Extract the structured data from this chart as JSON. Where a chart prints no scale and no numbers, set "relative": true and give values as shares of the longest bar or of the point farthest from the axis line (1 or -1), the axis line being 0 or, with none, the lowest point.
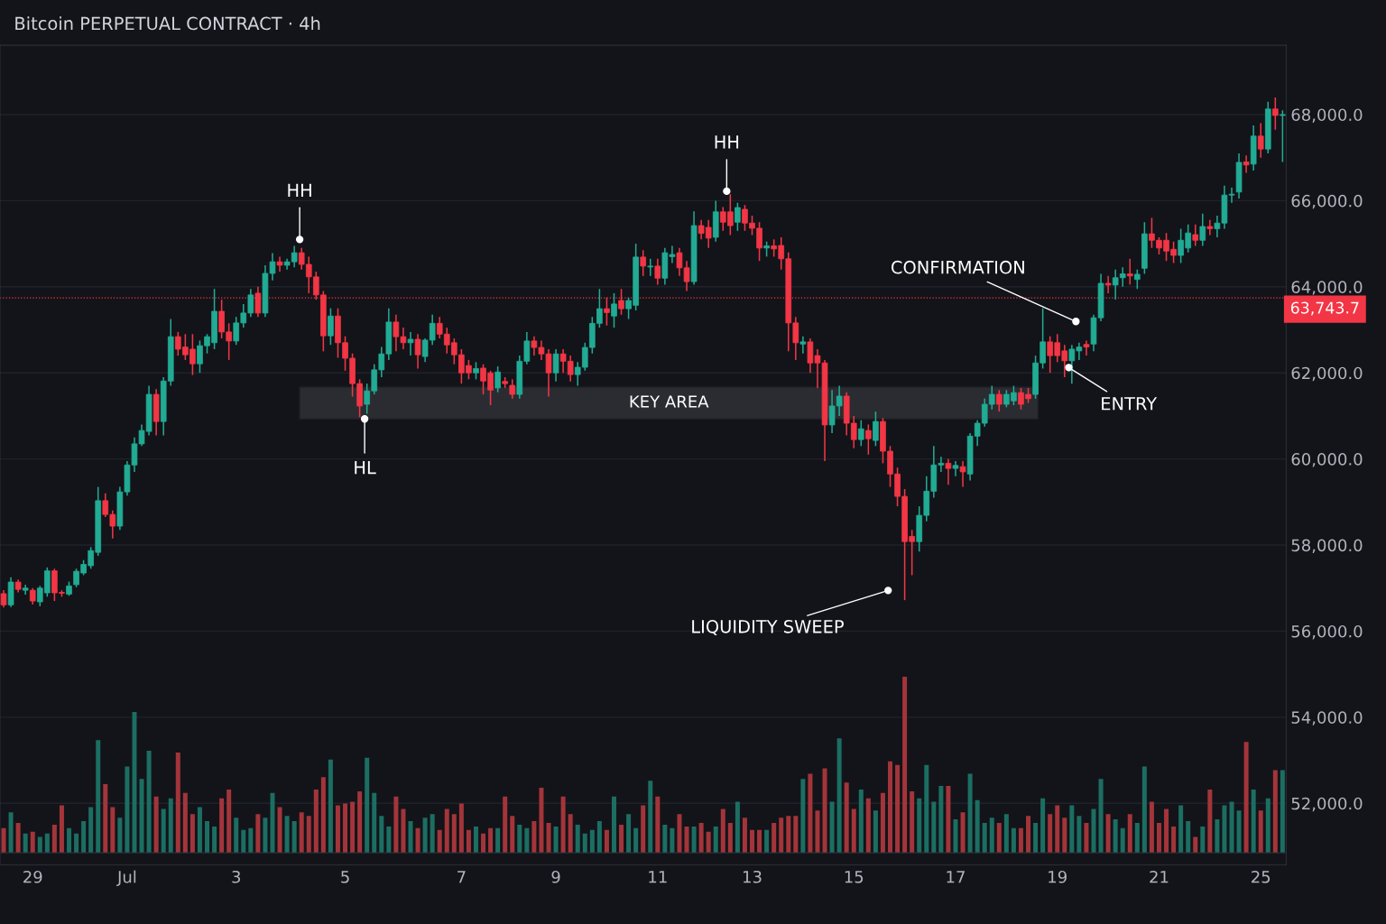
{
  "chart_data": [
    {
      "type": "candlestick",
      "title": "Bitcoin PERPETUAL CONTRACT · 4h",
      "tick_labels": "y",
      "categories": [
        null,
        null,
        null,
        null,
        null,
        null,
        null,
        null,
        null,
        null,
        null,
        null,
        null,
        null,
        null,
        null,
        null,
        null,
        null,
        null,
        null,
        null,
        null,
        null,
        null,
        null,
        null,
        null,
        null,
        null,
        null,
        null,
        null,
        null,
        null,
        null,
        null,
        null,
        null,
        null,
        null,
        null,
        null,
        null,
        null,
        null,
        null,
        null,
        null,
        null,
        null,
        null,
        null,
        null,
        null,
        null,
        null,
        null,
        null,
        null,
        null,
        null,
        null,
        null,
        null,
        null,
        null,
        null,
        null,
        null,
        null,
        null,
        null,
        null,
        null,
        null,
        null,
        null,
        null,
        null,
        null,
        null,
        null,
        null,
        null,
        null,
        null,
        null,
        null,
        null,
        null,
        null,
        null,
        null,
        null,
        null,
        null,
        null,
        null,
        null,
        null,
        null,
        null,
        null,
        null,
        null,
        null,
        null,
        null,
        null,
        null,
        null,
        null,
        null,
        null,
        null,
        null,
        null,
        null,
        null,
        null,
        null,
        null,
        null,
        null,
        null,
        null,
        null,
        null,
        null,
        null,
        null,
        null,
        null,
        null,
        null,
        null,
        null,
        null,
        null,
        null,
        null,
        null,
        null,
        null,
        null,
        null,
        null,
        null,
        null,
        null,
        null,
        null,
        null,
        null,
        null,
        null,
        null,
        null,
        null,
        null,
        null,
        null,
        null,
        null,
        null,
        null,
        null,
        null,
        null,
        null,
        null,
        null,
        null,
        null,
        null,
        null
      ],
      "ohlc": [
        [
          56870,
          56950,
          56550,
          56610
        ],
        [
          56610,
          57250,
          56560,
          57140
        ],
        [
          57140,
          57200,
          56900,
          56970
        ],
        [
          56950,
          57080,
          56850,
          57000
        ],
        [
          56950,
          57000,
          56620,
          56700
        ],
        [
          56680,
          57050,
          56580,
          57000
        ],
        [
          56890,
          57480,
          56800,
          57400
        ],
        [
          57400,
          57450,
          56700,
          56890
        ],
        [
          56900,
          56950,
          56800,
          56880
        ],
        [
          56860,
          57150,
          56820,
          57050
        ],
        [
          57080,
          57450,
          57020,
          57390
        ],
        [
          57350,
          57650,
          57300,
          57550
        ],
        [
          57520,
          57950,
          57450,
          57870
        ],
        [
          57830,
          59350,
          57750,
          59030
        ],
        [
          59030,
          59200,
          58650,
          58710
        ],
        [
          58710,
          58800,
          58150,
          58440
        ],
        [
          58440,
          59350,
          58350,
          59235
        ],
        [
          59235,
          59950,
          59150,
          59860
        ],
        [
          59860,
          60500,
          59700,
          60350
        ],
        [
          60350,
          60800,
          60300,
          60660
        ],
        [
          60640,
          61700,
          60550,
          61500
        ],
        [
          61500,
          61620,
          60550,
          60870
        ],
        [
          60870,
          61900,
          60550,
          61810
        ],
        [
          61810,
          63250,
          61700,
          62840
        ],
        [
          62840,
          62950,
          62400,
          62550
        ],
        [
          62600,
          62900,
          62300,
          62420
        ],
        [
          62550,
          62900,
          61950,
          62210
        ],
        [
          62210,
          62750,
          62000,
          62630
        ],
        [
          62630,
          62900,
          62450,
          62840
        ],
        [
          62700,
          63950,
          62550,
          63430
        ],
        [
          63430,
          63700,
          62800,
          62950
        ],
        [
          62950,
          63150,
          62300,
          62740
        ],
        [
          62740,
          63300,
          62650,
          63160
        ],
        [
          63160,
          63600,
          63050,
          63390
        ],
        [
          63390,
          63950,
          63300,
          63810
        ],
        [
          63850,
          64000,
          63300,
          63390
        ],
        [
          63390,
          64500,
          63300,
          64310
        ],
        [
          64310,
          64780,
          64150,
          64580
        ],
        [
          64580,
          64700,
          64350,
          64500
        ],
        [
          64500,
          64650,
          64400,
          64580
        ],
        [
          64580,
          64950,
          64450,
          64790
        ],
        [
          64790,
          64900,
          64400,
          64520
        ],
        [
          64520,
          64700,
          63850,
          64230
        ],
        [
          64230,
          64350,
          63700,
          63810
        ],
        [
          63810,
          63900,
          62500,
          62860
        ],
        [
          62860,
          63500,
          62650,
          63320
        ],
        [
          63320,
          63500,
          62350,
          62700
        ],
        [
          62700,
          62850,
          62050,
          62340
        ],
        [
          62340,
          62450,
          61450,
          61750
        ],
        [
          61750,
          61850,
          60970,
          61230
        ],
        [
          61270,
          61750,
          61050,
          61580
        ],
        [
          61580,
          62200,
          61500,
          62070
        ],
        [
          62070,
          62600,
          61900,
          62440
        ],
        [
          62440,
          63500,
          62300,
          63180
        ],
        [
          63180,
          63350,
          62500,
          62840
        ],
        [
          62840,
          63050,
          62550,
          62700
        ],
        [
          62700,
          62950,
          62400,
          62780
        ],
        [
          62780,
          62900,
          62100,
          62420
        ],
        [
          62380,
          62800,
          62250,
          62760
        ],
        [
          62760,
          63350,
          62650,
          63150
        ],
        [
          63150,
          63300,
          62800,
          62900
        ],
        [
          62900,
          63050,
          62450,
          62650
        ],
        [
          62700,
          62800,
          62200,
          62420
        ],
        [
          62420,
          62550,
          61750,
          62000
        ],
        [
          62170,
          62300,
          61850,
          62000
        ],
        [
          62000,
          62250,
          61850,
          62100
        ],
        [
          62110,
          62200,
          61500,
          61810
        ],
        [
          62000,
          62050,
          61250,
          61600
        ],
        [
          61650,
          62150,
          61550,
          62020
        ],
        [
          61800,
          61900,
          61650,
          61750
        ],
        [
          61710,
          61850,
          61400,
          61500
        ],
        [
          61500,
          62400,
          61400,
          62270
        ],
        [
          62270,
          62950,
          62200,
          62740
        ],
        [
          62740,
          62850,
          62400,
          62590
        ],
        [
          62590,
          62750,
          62300,
          62440
        ],
        [
          62440,
          62550,
          61450,
          62000
        ],
        [
          62000,
          62550,
          61800,
          62440
        ],
        [
          62440,
          62550,
          62000,
          62270
        ],
        [
          62270,
          62400,
          61800,
          61960
        ],
        [
          61960,
          62250,
          61700,
          62130
        ],
        [
          62130,
          62700,
          62050,
          62590
        ],
        [
          62590,
          63300,
          62450,
          63150
        ],
        [
          63150,
          63950,
          63050,
          63490
        ],
        [
          63490,
          63750,
          63100,
          63400
        ],
        [
          63320,
          63850,
          63050,
          63600
        ],
        [
          63680,
          63950,
          63350,
          63490
        ],
        [
          63490,
          63750,
          63250,
          63680
        ],
        [
          63570,
          65000,
          63450,
          64690
        ],
        [
          64690,
          64850,
          64250,
          64480
        ],
        [
          64460,
          64650,
          64250,
          64480
        ],
        [
          64480,
          64650,
          64050,
          64200
        ],
        [
          64200,
          64900,
          64050,
          64790
        ],
        [
          64700,
          64950,
          64550,
          64750
        ],
        [
          64790,
          64900,
          64250,
          64440
        ],
        [
          64440,
          64600,
          63900,
          64120
        ],
        [
          64120,
          65750,
          64050,
          65420
        ],
        [
          65420,
          65550,
          65100,
          65240
        ],
        [
          65380,
          65550,
          64900,
          65130
        ],
        [
          65150,
          66000,
          65050,
          65740
        ],
        [
          65740,
          65850,
          65300,
          65500
        ],
        [
          65740,
          66150,
          65200,
          65420
        ],
        [
          65500,
          65950,
          65300,
          65840
        ],
        [
          65800,
          65900,
          65300,
          65480
        ],
        [
          65480,
          65650,
          65200,
          65360
        ],
        [
          65360,
          65500,
          64600,
          64900
        ],
        [
          64900,
          65050,
          64700,
          64950
        ],
        [
          64950,
          65100,
          64700,
          64880
        ],
        [
          64960,
          65150,
          64400,
          64650
        ],
        [
          64650,
          64800,
          62500,
          63160
        ],
        [
          63160,
          63300,
          62300,
          62700
        ],
        [
          62670,
          62850,
          62450,
          62720
        ],
        [
          62720,
          62800,
          62000,
          62230
        ],
        [
          62400,
          62550,
          61650,
          62230
        ],
        [
          62230,
          62300,
          59950,
          60790
        ],
        [
          60790,
          61600,
          60600,
          61230
        ],
        [
          61230,
          61700,
          61000,
          61460
        ],
        [
          61460,
          61550,
          60550,
          60830
        ],
        [
          60830,
          61000,
          60250,
          60450
        ],
        [
          60450,
          60900,
          60300,
          60700
        ],
        [
          60660,
          60800,
          60100,
          60470
        ],
        [
          60430,
          61100,
          60300,
          60870
        ],
        [
          60870,
          60950,
          59900,
          60180
        ],
        [
          60180,
          60300,
          59350,
          59650
        ],
        [
          59650,
          59800,
          58900,
          59130
        ],
        [
          59130,
          59300,
          56720,
          58080
        ],
        [
          58200,
          58350,
          57300,
          58080
        ],
        [
          58080,
          58900,
          57850,
          58690
        ],
        [
          58690,
          59600,
          58550,
          59250
        ],
        [
          59250,
          60300,
          59100,
          59860
        ],
        [
          59860,
          60050,
          59700,
          59900
        ],
        [
          59900,
          60000,
          59400,
          59780
        ],
        [
          59780,
          59950,
          59600,
          59850
        ],
        [
          59820,
          59950,
          59350,
          59700
        ],
        [
          59650,
          60600,
          59500,
          60530
        ],
        [
          60530,
          60900,
          60300,
          60830
        ],
        [
          60830,
          61400,
          60750,
          61270
        ],
        [
          61270,
          61700,
          61150,
          61500
        ],
        [
          61500,
          61600,
          61100,
          61270
        ],
        [
          61270,
          61600,
          61200,
          61500
        ],
        [
          61350,
          61700,
          61250,
          61540
        ],
        [
          61540,
          61650,
          61150,
          61270
        ],
        [
          61500,
          61650,
          61300,
          61400
        ],
        [
          61500,
          62400,
          61400,
          62230
        ],
        [
          62230,
          63500,
          62100,
          62720
        ],
        [
          62720,
          62850,
          62000,
          62400
        ],
        [
          62700,
          62900,
          62250,
          62400
        ],
        [
          62510,
          62650,
          61900,
          62280
        ],
        [
          62280,
          62650,
          61750,
          62550
        ],
        [
          62510,
          62700,
          62300,
          62600
        ],
        [
          62660,
          62750,
          62400,
          62600
        ],
        [
          62670,
          63350,
          62500,
          63280
        ],
        [
          63280,
          64300,
          63200,
          64080
        ],
        [
          64080,
          64250,
          63850,
          64040
        ],
        [
          64040,
          64400,
          63700,
          64210
        ],
        [
          64210,
          64450,
          64000,
          64300
        ],
        [
          64300,
          64650,
          64050,
          64250
        ],
        [
          64170,
          64400,
          63950,
          64290
        ],
        [
          64430,
          65500,
          64300,
          65230
        ],
        [
          65230,
          65600,
          64900,
          65080
        ],
        [
          65080,
          65150,
          64750,
          64900
        ],
        [
          65080,
          65250,
          64600,
          64830
        ],
        [
          64870,
          65050,
          64550,
          64730
        ],
        [
          64730,
          65350,
          64550,
          65080
        ],
        [
          64900,
          65450,
          64800,
          65250
        ],
        [
          65210,
          65450,
          64950,
          65080
        ],
        [
          65080,
          65700,
          64950,
          65400
        ],
        [
          65400,
          65550,
          65200,
          65350
        ],
        [
          65350,
          65650,
          65150,
          65480
        ],
        [
          65480,
          66350,
          65350,
          66130
        ],
        [
          66130,
          66300,
          65950,
          66150
        ],
        [
          66200,
          67100,
          66050,
          66890
        ],
        [
          66900,
          67050,
          66650,
          66830
        ],
        [
          66850,
          67750,
          66700,
          67500
        ],
        [
          67500,
          67800,
          67000,
          67200
        ],
        [
          67200,
          68300,
          67100,
          68130
        ],
        [
          68130,
          68400,
          67650,
          67980
        ],
        [
          67980,
          68100,
          66900,
          68000
        ]
      ],
      "colors": [
        "#f23645",
        "#22ab94",
        "#f23645",
        "#22ab94",
        "#f23645",
        "#22ab94",
        "#22ab94",
        "#f23645",
        "#f23645",
        "#22ab94",
        "#22ab94",
        "#22ab94",
        "#22ab94",
        "#22ab94",
        "#f23645",
        "#f23645",
        "#22ab94",
        "#22ab94",
        "#22ab94",
        "#22ab94",
        "#22ab94",
        "#f23645",
        "#22ab94",
        "#22ab94",
        "#f23645",
        "#f23645",
        "#f23645",
        "#22ab94",
        "#22ab94",
        "#22ab94",
        "#f23645",
        "#f23645",
        "#22ab94",
        "#22ab94",
        "#22ab94",
        "#f23645",
        "#22ab94",
        "#22ab94",
        "#f23645",
        "#22ab94",
        "#22ab94",
        "#f23645",
        "#f23645",
        "#f23645",
        "#f23645",
        "#22ab94",
        "#f23645",
        "#f23645",
        "#f23645",
        "#f23645",
        "#22ab94",
        "#22ab94",
        "#22ab94",
        "#22ab94",
        "#f23645",
        "#f23645",
        "#22ab94",
        "#f23645",
        "#22ab94",
        "#22ab94",
        "#f23645",
        "#f23645",
        "#f23645",
        "#f23645",
        "#f23645",
        "#22ab94",
        "#f23645",
        "#f23645",
        "#22ab94",
        "#f23645",
        "#f23645",
        "#22ab94",
        "#22ab94",
        "#f23645",
        "#f23645",
        "#f23645",
        "#22ab94",
        "#f23645",
        "#f23645",
        "#22ab94",
        "#22ab94",
        "#22ab94",
        "#22ab94",
        "#f23645",
        "#22ab94",
        "#f23645",
        "#22ab94",
        "#22ab94",
        "#f23645",
        "#22ab94",
        "#f23645",
        "#22ab94",
        "#22ab94",
        "#f23645",
        "#f23645",
        "#22ab94",
        "#f23645",
        "#f23645",
        "#22ab94",
        "#f23645",
        "#f23645",
        "#22ab94",
        "#f23645",
        "#f23645",
        "#f23645",
        "#22ab94",
        "#f23645",
        "#f23645",
        "#f23645",
        "#f23645",
        "#22ab94",
        "#f23645",
        "#f23645",
        "#f23645",
        "#22ab94",
        "#22ab94",
        "#f23645",
        "#f23645",
        "#22ab94",
        "#f23645",
        "#22ab94",
        "#f23645",
        "#f23645",
        "#f23645",
        "#f23645",
        "#f23645",
        "#22ab94",
        "#22ab94",
        "#22ab94",
        "#22ab94",
        "#f23645",
        "#22ab94",
        "#f23645",
        "#22ab94",
        "#22ab94",
        "#22ab94",
        "#22ab94",
        "#f23645",
        "#22ab94",
        "#22ab94",
        "#f23645",
        "#f23645",
        "#22ab94",
        "#22ab94",
        "#f23645",
        "#f23645",
        "#f23645",
        "#22ab94",
        "#22ab94",
        "#f23645",
        "#22ab94",
        "#22ab94",
        "#f23645",
        "#22ab94",
        "#22ab94",
        "#f23645",
        "#22ab94",
        "#22ab94",
        "#f23645",
        "#f23645",
        "#f23645",
        "#f23645",
        "#22ab94",
        "#22ab94",
        "#f23645",
        "#22ab94",
        "#f23645",
        "#22ab94",
        "#22ab94",
        "#22ab94",
        "#22ab94",
        "#f23645",
        "#22ab94",
        "#f23645",
        "#22ab94",
        "#f23645",
        "#22ab94"
      ],
      "ylim": [
        50570,
        69610
      ],
      "yticks": [
        {
          "value": 52000,
          "label": "52,000.0"
        },
        {
          "value": 54000,
          "label": "54,000.0"
        },
        {
          "value": 56000,
          "label": "56,000.0"
        },
        {
          "value": 58000,
          "label": "58,000.0"
        },
        {
          "value": 60000,
          "label": "60,000.0"
        },
        {
          "value": 62000,
          "label": "62,000.0"
        },
        {
          "value": 64000,
          "label": "64,000.0"
        },
        {
          "value": 66000,
          "label": "66,000.0"
        },
        {
          "value": 68000,
          "label": "68,000.0"
        }
      ],
      "grid": "y",
      "ref_lines": [
        {
          "axis": "y",
          "value": 63743.7,
          "label": "63,743.7",
          "color": "#f23645",
          "line_style": "dotted"
        }
      ],
      "bands": [
        {
          "axis": "y",
          "from": 60930,
          "to": 61670,
          "label": "KEY AREA",
          "color": "#ffffff"
        }
      ],
      "annotations": [
        {
          "text": "HH",
          "y": 65100
        },
        {
          "text": "HL",
          "y": 60930
        },
        {
          "text": "HH",
          "y": 66220
        },
        "LIQUIDITY SWEEP",
        "CONFIRMATION",
        "ENTRY"
      ]
    },
    {
      "type": "bar",
      "relative": true,
      "categories": [
        null,
        null,
        null,
        null,
        "29",
        null,
        null,
        null,
        null,
        null,
        null,
        null,
        null,
        null,
        null,
        null,
        null,
        "Jul",
        null,
        null,
        null,
        null,
        null,
        null,
        null,
        null,
        null,
        null,
        null,
        null,
        null,
        null,
        "3",
        null,
        null,
        null,
        null,
        null,
        null,
        null,
        null,
        null,
        null,
        null,
        null,
        null,
        null,
        "5",
        null,
        null,
        null,
        null,
        null,
        null,
        null,
        null,
        null,
        null,
        null,
        null,
        null,
        null,
        null,
        "7",
        null,
        null,
        null,
        null,
        null,
        null,
        null,
        null,
        null,
        null,
        null,
        null,
        "9",
        null,
        null,
        null,
        null,
        null,
        null,
        null,
        null,
        null,
        null,
        null,
        null,
        null,
        "11",
        null,
        null,
        null,
        null,
        null,
        null,
        null,
        null,
        null,
        null,
        null,
        null,
        "13",
        null,
        null,
        null,
        null,
        null,
        null,
        null,
        null,
        null,
        null,
        null,
        null,
        null,
        "15",
        null,
        null,
        null,
        null,
        null,
        null,
        null,
        null,
        null,
        null,
        null,
        null,
        null,
        "17",
        null,
        null,
        null,
        null,
        null,
        null,
        null,
        null,
        null,
        null,
        null,
        null,
        null,
        "19",
        null,
        null,
        null,
        null,
        null,
        null,
        null,
        null,
        null,
        null,
        null,
        null,
        null,
        "21",
        null,
        null,
        null,
        null,
        null,
        null,
        null,
        null,
        null,
        null,
        null,
        null,
        null,
        "25",
        null,
        null,
        null
      ],
      "values": [
        0.14,
        0.23,
        0.17,
        0.11,
        0.12,
        0.09,
        0.11,
        0.16,
        0.27,
        0.14,
        0.11,
        0.18,
        0.26,
        0.64,
        0.39,
        0.26,
        0.2,
        0.49,
        0.8,
        0.42,
        0.58,
        0.32,
        0.25,
        0.31,
        0.57,
        0.34,
        0.22,
        0.26,
        0.18,
        0.15,
        0.31,
        0.36,
        0.2,
        0.13,
        0.14,
        0.22,
        0.2,
        0.34,
        0.26,
        0.21,
        0.18,
        0.23,
        0.21,
        0.36,
        0.43,
        0.53,
        0.27,
        0.28,
        0.29,
        0.35,
        0.54,
        0.34,
        0.21,
        0.15,
        0.32,
        0.25,
        0.18,
        0.14,
        0.2,
        0.22,
        0.13,
        0.25,
        0.22,
        0.28,
        0.13,
        0.15,
        0.11,
        0.14,
        0.14,
        0.32,
        0.21,
        0.16,
        0.14,
        0.18,
        0.37,
        0.17,
        0.15,
        0.32,
        0.22,
        0.16,
        0.11,
        0.13,
        0.18,
        0.13,
        0.32,
        0.16,
        0.22,
        0.14,
        0.27,
        0.41,
        0.32,
        0.16,
        0.14,
        0.22,
        0.15,
        0.15,
        0.17,
        0.12,
        0.15,
        0.25,
        0.17,
        0.29,
        0.2,
        0.13,
        0.13,
        0.13,
        0.17,
        0.2,
        0.21,
        0.21,
        0.42,
        0.45,
        0.24,
        0.48,
        0.29,
        0.65,
        0.4,
        0.25,
        0.36,
        0.31,
        0.24,
        0.34,
        0.52,
        0.5,
        1,
        0.35,
        0.31,
        0.5,
        0.29,
        0.38,
        0.38,
        0.19,
        0.23,
        0.45,
        0.3,
        0.17,
        0.2,
        0.17,
        0.22,
        0.14,
        0.14,
        0.21,
        0.17,
        0.31,
        0.22,
        0.27,
        0.2,
        0.27,
        0.21,
        0.17,
        0.25,
        0.42,
        0.22,
        0.19,
        0.14,
        0.22,
        0.17,
        0.49,
        0.29,
        0.17,
        0.25,
        0.15,
        0.27,
        0.18,
        0.09,
        0.15,
        0.36,
        0.19,
        0.27,
        0.29,
        0.24,
        0.63,
        0.36,
        0.24,
        0.31,
        0.47,
        0.47
      ],
      "colors": [
        "#a3353a",
        "#1c6e63",
        "#a3353a",
        "#1c6e63",
        "#a3353a",
        "#1c6e63",
        "#1c6e63",
        "#a3353a",
        "#a3353a",
        "#1c6e63",
        "#1c6e63",
        "#1c6e63",
        "#1c6e63",
        "#1c6e63",
        "#a3353a",
        "#a3353a",
        "#1c6e63",
        "#1c6e63",
        "#1c6e63",
        "#1c6e63",
        "#1c6e63",
        "#a3353a",
        "#1c6e63",
        "#1c6e63",
        "#a3353a",
        "#a3353a",
        "#a3353a",
        "#1c6e63",
        "#1c6e63",
        "#1c6e63",
        "#a3353a",
        "#a3353a",
        "#1c6e63",
        "#1c6e63",
        "#1c6e63",
        "#a3353a",
        "#1c6e63",
        "#1c6e63",
        "#a3353a",
        "#1c6e63",
        "#1c6e63",
        "#a3353a",
        "#a3353a",
        "#a3353a",
        "#a3353a",
        "#1c6e63",
        "#a3353a",
        "#a3353a",
        "#a3353a",
        "#a3353a",
        "#1c6e63",
        "#1c6e63",
        "#1c6e63",
        "#1c6e63",
        "#a3353a",
        "#a3353a",
        "#1c6e63",
        "#a3353a",
        "#1c6e63",
        "#1c6e63",
        "#a3353a",
        "#a3353a",
        "#a3353a",
        "#a3353a",
        "#a3353a",
        "#1c6e63",
        "#a3353a",
        "#a3353a",
        "#1c6e63",
        "#a3353a",
        "#a3353a",
        "#1c6e63",
        "#1c6e63",
        "#a3353a",
        "#a3353a",
        "#a3353a",
        "#1c6e63",
        "#a3353a",
        "#a3353a",
        "#1c6e63",
        "#1c6e63",
        "#1c6e63",
        "#1c6e63",
        "#a3353a",
        "#1c6e63",
        "#a3353a",
        "#1c6e63",
        "#1c6e63",
        "#a3353a",
        "#1c6e63",
        "#a3353a",
        "#1c6e63",
        "#1c6e63",
        "#a3353a",
        "#a3353a",
        "#1c6e63",
        "#a3353a",
        "#a3353a",
        "#1c6e63",
        "#a3353a",
        "#a3353a",
        "#1c6e63",
        "#a3353a",
        "#a3353a",
        "#a3353a",
        "#1c6e63",
        "#a3353a",
        "#a3353a",
        "#a3353a",
        "#a3353a",
        "#1c6e63",
        "#a3353a",
        "#a3353a",
        "#a3353a",
        "#1c6e63",
        "#1c6e63",
        "#a3353a",
        "#a3353a",
        "#1c6e63",
        "#a3353a",
        "#1c6e63",
        "#a3353a",
        "#a3353a",
        "#a3353a",
        "#a3353a",
        "#a3353a",
        "#1c6e63",
        "#1c6e63",
        "#1c6e63",
        "#1c6e63",
        "#a3353a",
        "#1c6e63",
        "#a3353a",
        "#1c6e63",
        "#1c6e63",
        "#1c6e63",
        "#1c6e63",
        "#a3353a",
        "#1c6e63",
        "#1c6e63",
        "#a3353a",
        "#a3353a",
        "#1c6e63",
        "#1c6e63",
        "#a3353a",
        "#a3353a",
        "#a3353a",
        "#1c6e63",
        "#1c6e63",
        "#a3353a",
        "#1c6e63",
        "#1c6e63",
        "#a3353a",
        "#1c6e63",
        "#1c6e63",
        "#a3353a",
        "#1c6e63",
        "#1c6e63",
        "#a3353a",
        "#a3353a",
        "#a3353a",
        "#a3353a",
        "#1c6e63",
        "#1c6e63",
        "#a3353a",
        "#1c6e63",
        "#a3353a",
        "#1c6e63",
        "#1c6e63",
        "#1c6e63",
        "#1c6e63",
        "#a3353a",
        "#1c6e63",
        "#a3353a",
        "#1c6e63",
        "#a3353a",
        "#1c6e63"
      ]
    }
  ]
}
